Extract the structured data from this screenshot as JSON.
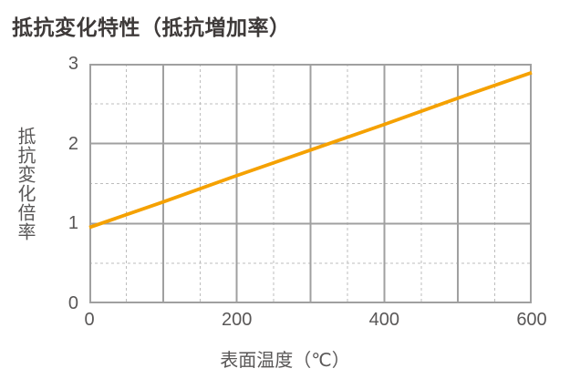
{
  "title": "抵抗変化特性（抵抗増加率）",
  "colors": {
    "background": "#FFFFFF",
    "line": "#F5A100",
    "grid_solid": "#A0A0A0",
    "grid_dashed": "#BDBDBD",
    "title_text": "#3E3A39",
    "axis_text": "#595757"
  },
  "chart_data": {
    "type": "line",
    "title": "抵抗変化特性（抵抗増加率）",
    "xlabel": "表面温度（℃）",
    "ylabel": "抵抗変化倍率",
    "xlim": [
      0,
      600
    ],
    "ylim": [
      0,
      3
    ],
    "x_tick_values": [
      0,
      200,
      400,
      600
    ],
    "x_tick_labels": [
      "0",
      "200",
      "400",
      "600"
    ],
    "y_tick_values": [
      0,
      1,
      2,
      3
    ],
    "y_tick_labels": [
      "0",
      "1",
      "2",
      "3"
    ],
    "grid": {
      "x_solid": [
        0,
        100,
        200,
        300,
        400,
        500,
        600
      ],
      "x_dashed": [
        50,
        150,
        250,
        350,
        450,
        550
      ],
      "y_solid": [
        0,
        1,
        2,
        3
      ],
      "y_dashed": [
        0.5,
        1.5,
        2.5
      ]
    },
    "legend": "none",
    "series": [
      {
        "name": "抵抗変化倍率",
        "color": "#F5A100",
        "x": [
          0,
          100,
          200,
          300,
          400,
          500,
          600
        ],
        "y": [
          0.95,
          1.27,
          1.6,
          1.92,
          2.24,
          2.57,
          2.89
        ]
      }
    ]
  }
}
